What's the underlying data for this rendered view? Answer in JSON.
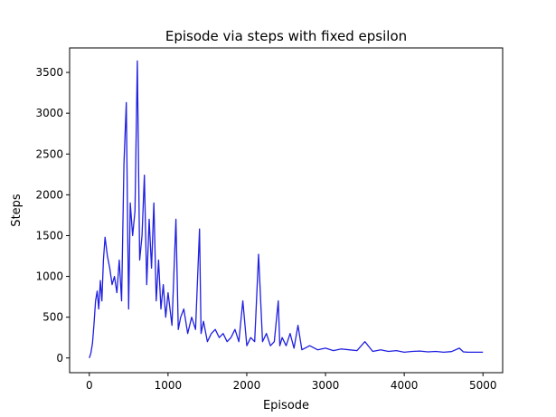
{
  "chart_data": {
    "type": "line",
    "title": "Episode via steps with fixed epsilon",
    "xlabel": "Episode",
    "ylabel": "Steps",
    "xlim": [
      -250,
      5250
    ],
    "ylim": [
      -180,
      3800
    ],
    "xticks": [
      0,
      1000,
      2000,
      3000,
      4000,
      5000
    ],
    "yticks": [
      0,
      500,
      1000,
      1500,
      2000,
      2500,
      3000,
      3500
    ],
    "grid": false,
    "legend": "none",
    "series_color": "#1f1fe0",
    "series": [
      {
        "x": [
          0,
          20,
          40,
          60,
          80,
          100,
          120,
          140,
          160,
          180,
          200,
          230,
          260,
          290,
          320,
          350,
          380,
          410,
          440,
          470,
          490,
          500,
          520,
          550,
          580,
          610,
          640,
          670,
          700,
          730,
          760,
          790,
          820,
          850,
          880,
          910,
          940,
          970,
          1000,
          1050,
          1100,
          1130,
          1160,
          1200,
          1250,
          1300,
          1350,
          1400,
          1420,
          1450,
          1500,
          1550,
          1600,
          1650,
          1700,
          1750,
          1800,
          1850,
          1900,
          1950,
          2000,
          2050,
          2100,
          2150,
          2200,
          2250,
          2300,
          2350,
          2400,
          2420,
          2450,
          2500,
          2550,
          2600,
          2650,
          2700,
          2800,
          2900,
          3000,
          3100,
          3200,
          3300,
          3400,
          3500,
          3600,
          3700,
          3800,
          3900,
          4000,
          4100,
          4200,
          4300,
          4400,
          4500,
          4600,
          4700,
          4750,
          4800,
          4900,
          5000
        ],
        "y": [
          0,
          60,
          180,
          420,
          700,
          820,
          600,
          950,
          700,
          1200,
          1480,
          1250,
          1100,
          900,
          1000,
          800,
          1200,
          700,
          2380,
          3130,
          1400,
          600,
          1900,
          1500,
          1800,
          3640,
          1200,
          1500,
          2240,
          900,
          1700,
          1100,
          1900,
          700,
          1200,
          600,
          900,
          500,
          800,
          400,
          1700,
          350,
          500,
          600,
          300,
          500,
          350,
          1580,
          300,
          450,
          200,
          300,
          350,
          250,
          300,
          200,
          250,
          350,
          200,
          700,
          150,
          250,
          200,
          1270,
          200,
          300,
          150,
          200,
          700,
          150,
          250,
          150,
          300,
          120,
          400,
          100,
          150,
          100,
          120,
          90,
          110,
          100,
          90,
          200,
          80,
          100,
          80,
          90,
          70,
          80,
          85,
          75,
          80,
          70,
          78,
          120,
          75,
          72,
          70,
          70
        ]
      }
    ]
  }
}
